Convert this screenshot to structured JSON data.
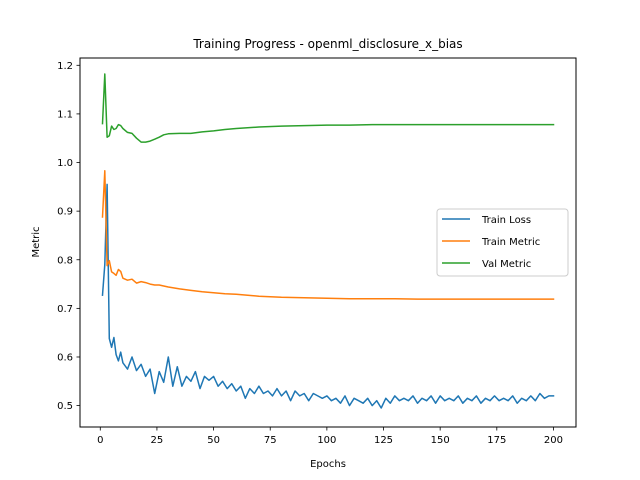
{
  "chart_data": {
    "type": "line",
    "title": "Training Progress - openml_disclosure_x_bias",
    "xlabel": "Epochs",
    "ylabel": "Metric",
    "xlim": [
      -8.95,
      209.95
    ],
    "ylim": [
      0.456,
      1.215
    ],
    "xticks": [
      0,
      25,
      50,
      75,
      100,
      125,
      150,
      175,
      200
    ],
    "yticks": [
      0.5,
      0.6,
      0.7,
      0.8,
      0.9,
      1.0,
      1.1,
      1.2
    ],
    "ytick_labels": [
      "0.5",
      "0.6",
      "0.7",
      "0.8",
      "0.9",
      "1.0",
      "1.1",
      "1.2"
    ],
    "grid": false,
    "legend_position": "center-right",
    "series": [
      {
        "name": "Train Loss",
        "color": "#1f77b4",
        "x": [
          1,
          2,
          3,
          4,
          5,
          6,
          7,
          8,
          9,
          10,
          12,
          14,
          16,
          18,
          20,
          22,
          24,
          26,
          28,
          30,
          32,
          34,
          36,
          38,
          40,
          42,
          44,
          46,
          48,
          50,
          52,
          54,
          56,
          58,
          60,
          62,
          64,
          66,
          68,
          70,
          72,
          74,
          76,
          78,
          80,
          82,
          84,
          86,
          88,
          90,
          92,
          94,
          96,
          98,
          100,
          102,
          104,
          106,
          108,
          110,
          112,
          114,
          116,
          118,
          120,
          122,
          124,
          126,
          128,
          130,
          132,
          134,
          136,
          138,
          140,
          142,
          144,
          146,
          148,
          150,
          152,
          154,
          156,
          158,
          160,
          162,
          164,
          166,
          168,
          170,
          172,
          174,
          176,
          178,
          180,
          182,
          184,
          186,
          188,
          190,
          192,
          194,
          196,
          198,
          200
        ],
        "y": [
          0.727,
          0.79,
          0.955,
          0.638,
          0.62,
          0.64,
          0.605,
          0.592,
          0.61,
          0.588,
          0.575,
          0.6,
          0.572,
          0.585,
          0.56,
          0.575,
          0.525,
          0.57,
          0.548,
          0.6,
          0.54,
          0.58,
          0.54,
          0.56,
          0.55,
          0.57,
          0.535,
          0.56,
          0.552,
          0.56,
          0.54,
          0.55,
          0.535,
          0.545,
          0.53,
          0.54,
          0.515,
          0.535,
          0.525,
          0.54,
          0.525,
          0.53,
          0.52,
          0.535,
          0.52,
          0.53,
          0.51,
          0.53,
          0.52,
          0.525,
          0.51,
          0.525,
          0.52,
          0.515,
          0.52,
          0.51,
          0.515,
          0.505,
          0.52,
          0.5,
          0.515,
          0.51,
          0.505,
          0.515,
          0.5,
          0.51,
          0.495,
          0.515,
          0.505,
          0.52,
          0.51,
          0.515,
          0.51,
          0.52,
          0.505,
          0.515,
          0.51,
          0.52,
          0.505,
          0.52,
          0.51,
          0.515,
          0.51,
          0.52,
          0.505,
          0.515,
          0.51,
          0.52,
          0.505,
          0.515,
          0.51,
          0.52,
          0.51,
          0.515,
          0.51,
          0.52,
          0.505,
          0.515,
          0.51,
          0.52,
          0.51,
          0.525,
          0.515,
          0.52,
          0.52
        ]
      },
      {
        "name": "Train Metric",
        "color": "#ff7f0e",
        "x": [
          1,
          2,
          3,
          4,
          5,
          6,
          7,
          8,
          9,
          10,
          12,
          14,
          16,
          18,
          20,
          22,
          24,
          26,
          28,
          30,
          35,
          40,
          45,
          50,
          55,
          60,
          70,
          80,
          90,
          100,
          110,
          120,
          130,
          140,
          150,
          160,
          170,
          180,
          190,
          200
        ],
        "y": [
          0.888,
          0.983,
          0.788,
          0.798,
          0.775,
          0.772,
          0.768,
          0.78,
          0.776,
          0.762,
          0.758,
          0.76,
          0.752,
          0.755,
          0.753,
          0.75,
          0.748,
          0.748,
          0.746,
          0.744,
          0.74,
          0.737,
          0.734,
          0.732,
          0.73,
          0.729,
          0.725,
          0.723,
          0.722,
          0.721,
          0.72,
          0.72,
          0.72,
          0.719,
          0.719,
          0.719,
          0.719,
          0.719,
          0.719,
          0.719
        ]
      },
      {
        "name": "Val Metric",
        "color": "#2ca02c",
        "x": [
          1,
          2,
          3,
          4,
          5,
          6,
          7,
          8,
          9,
          10,
          12,
          14,
          16,
          18,
          20,
          22,
          24,
          26,
          28,
          30,
          35,
          40,
          45,
          50,
          55,
          60,
          70,
          80,
          90,
          100,
          110,
          120,
          130,
          140,
          150,
          160,
          170,
          180,
          190,
          200
        ],
        "y": [
          1.08,
          1.182,
          1.052,
          1.055,
          1.075,
          1.068,
          1.07,
          1.078,
          1.076,
          1.07,
          1.062,
          1.06,
          1.05,
          1.042,
          1.042,
          1.044,
          1.048,
          1.052,
          1.057,
          1.059,
          1.06,
          1.06,
          1.063,
          1.065,
          1.068,
          1.07,
          1.073,
          1.075,
          1.076,
          1.077,
          1.077,
          1.078,
          1.078,
          1.078,
          1.078,
          1.078,
          1.078,
          1.078,
          1.078,
          1.078
        ]
      }
    ]
  }
}
